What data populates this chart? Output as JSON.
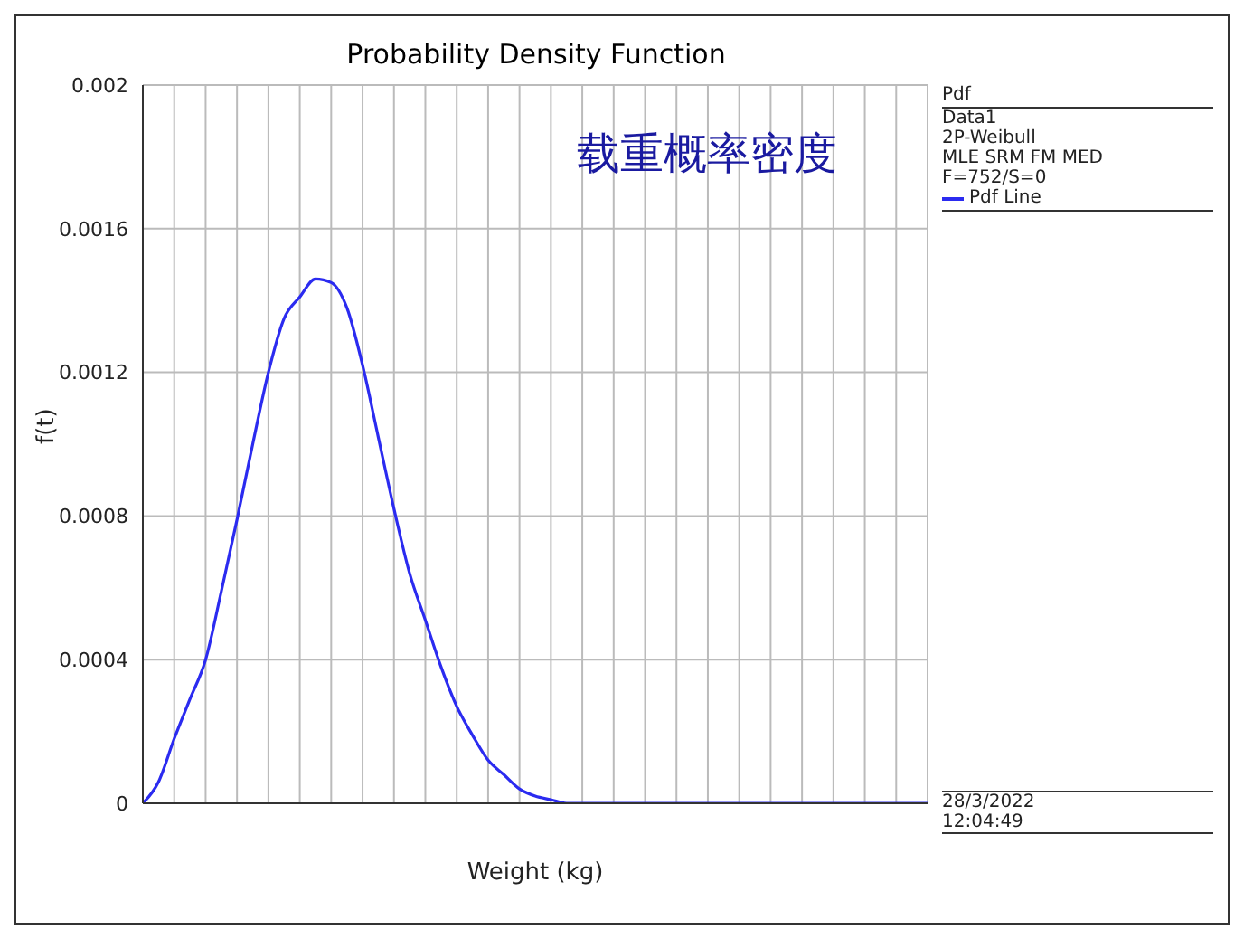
{
  "chart_data": {
    "type": "line",
    "title": "Probability Density Function",
    "xlabel": "Weight (kg)",
    "ylabel": "f(t)",
    "legend_title": "Pdf",
    "annotations": [
      "载重概率密度",
      "Data1",
      "2P-Weibull",
      "MLE SRM FM MED",
      "F=752/S=0",
      "28/3/2022",
      "12:04:49"
    ],
    "categories": [
      null,
      null,
      null,
      null,
      null,
      null,
      null,
      null,
      null,
      null,
      null,
      null,
      null,
      null,
      null,
      null,
      null,
      null,
      null,
      null,
      null,
      null,
      null,
      null,
      null,
      null,
      null,
      null,
      null,
      null,
      null,
      null,
      null,
      null,
      null,
      null,
      null,
      null,
      null,
      null,
      null,
      null,
      null,
      null,
      null,
      null,
      null,
      null,
      null,
      null,
      null
    ],
    "series": [
      {
        "name": "Pdf Line",
        "color": "#2b2bf0",
        "values": [
          0,
          6e-05,
          0.00018,
          0.00029,
          0.0004,
          0.00059,
          0.00079,
          0.001,
          0.0012,
          0.00135,
          0.00141,
          0.00146,
          0.00145,
          0.00138,
          0.00122,
          0.00102,
          0.00082,
          0.00064,
          0.00051,
          0.00038,
          0.00027,
          0.00019,
          0.00012,
          8e-05,
          4e-05,
          2e-05,
          1e-05,
          0,
          0,
          0,
          0,
          0,
          0,
          0,
          0,
          0,
          0,
          0,
          0,
          0,
          0,
          0,
          0,
          0,
          0,
          0,
          0,
          0,
          0,
          0,
          0
        ]
      }
    ],
    "ylim": [
      0,
      0.002
    ],
    "yticks": [
      0,
      0.0004,
      0.0008,
      0.0012,
      0.0016,
      0.002
    ],
    "grid": true,
    "legend": "right",
    "tick_labels": "y",
    "marker": "none",
    "line_style": "solid"
  }
}
